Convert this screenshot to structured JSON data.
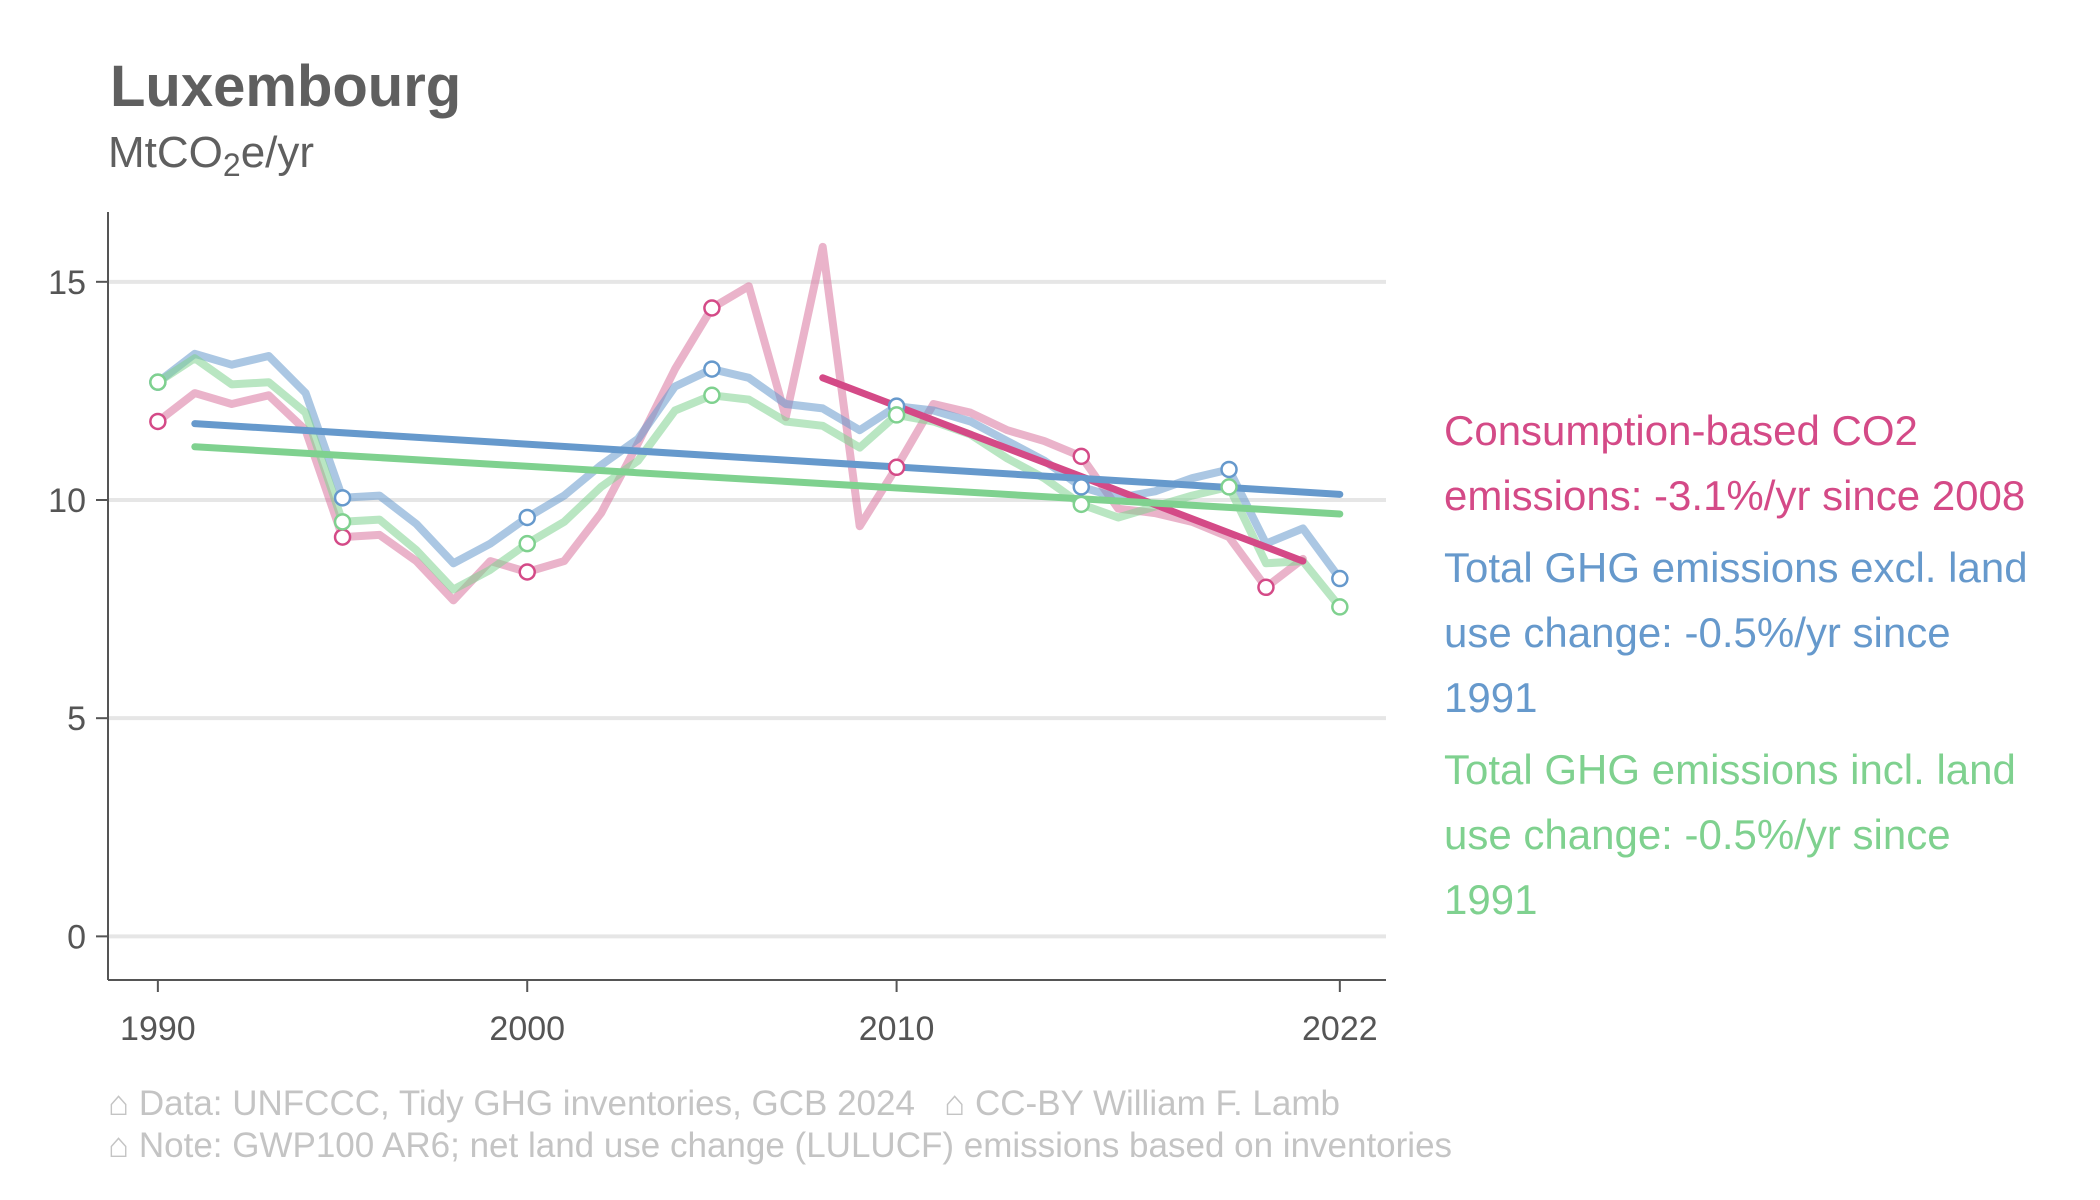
{
  "chart_data": {
    "type": "line",
    "title": "Luxembourg",
    "subtitle": {
      "prefix": "MtCO",
      "sub": "2",
      "suffix": "e/yr"
    },
    "ylim": [
      -1,
      16.6
    ],
    "xlim": [
      1988.65,
      2023.25
    ],
    "xticks": [
      "1990",
      "2000",
      "2010",
      "2022"
    ],
    "yticks": [
      "0",
      "5",
      "10",
      "15"
    ],
    "grid": true,
    "series": [
      {
        "key": "excl",
        "color": "#6699cc",
        "x": [
          1990,
          1991,
          1992,
          1993,
          1994,
          1995,
          1996,
          1997,
          1998,
          1999,
          2000,
          2001,
          2002,
          2003,
          2004,
          2005,
          2006,
          2007,
          2008,
          2009,
          2010,
          2011,
          2012,
          2013,
          2014,
          2015,
          2016,
          2017,
          2018,
          2019,
          2020,
          2021,
          2022
        ],
        "values": [
          12.7,
          13.35,
          13.1,
          13.3,
          12.45,
          10.05,
          10.1,
          9.45,
          8.55,
          9.0,
          9.6,
          10.1,
          10.8,
          11.4,
          12.6,
          13.0,
          12.8,
          12.2,
          12.1,
          11.6,
          12.15,
          12.05,
          11.8,
          11.35,
          10.9,
          10.3,
          10.05,
          10.2,
          10.5,
          10.7,
          9.0,
          9.35,
          8.2
        ],
        "markers": [
          1990,
          1995,
          2000,
          2005,
          2010,
          2015,
          2019,
          2022
        ]
      },
      {
        "key": "incl",
        "color": "#7fd18f",
        "x": [
          1990,
          1991,
          1992,
          1993,
          1994,
          1995,
          1996,
          1997,
          1998,
          1999,
          2000,
          2001,
          2002,
          2003,
          2004,
          2005,
          2006,
          2007,
          2008,
          2009,
          2010,
          2011,
          2012,
          2013,
          2014,
          2015,
          2016,
          2017,
          2018,
          2019,
          2020,
          2021,
          2022
        ],
        "values": [
          12.7,
          13.25,
          12.65,
          12.7,
          12.0,
          9.5,
          9.55,
          8.85,
          7.95,
          8.4,
          9.0,
          9.5,
          10.3,
          10.9,
          12.05,
          12.4,
          12.3,
          11.8,
          11.7,
          11.2,
          11.95,
          11.8,
          11.5,
          10.95,
          10.5,
          9.9,
          9.6,
          9.85,
          10.1,
          10.3,
          8.55,
          8.6,
          7.55
        ],
        "markers": [
          1990,
          1995,
          2000,
          2005,
          2010,
          2015,
          2019,
          2022
        ]
      },
      {
        "key": "cons",
        "color": "#d9749f",
        "x": [
          1990,
          1991,
          1992,
          1993,
          1994,
          1995,
          1996,
          1997,
          1998,
          1999,
          2000,
          2001,
          2002,
          2003,
          2004,
          2005,
          2006,
          2007,
          2008,
          2009,
          2010,
          2011,
          2012,
          2013,
          2014,
          2015,
          2016,
          2017,
          2018,
          2019,
          2020,
          2021
        ],
        "values": [
          11.8,
          12.45,
          12.2,
          12.4,
          11.6,
          9.15,
          9.2,
          8.6,
          7.7,
          8.6,
          8.35,
          8.6,
          9.7,
          11.3,
          13.0,
          14.4,
          14.9,
          11.9,
          15.8,
          9.4,
          10.75,
          12.2,
          12.0,
          11.6,
          11.35,
          11.0,
          9.8,
          9.7,
          9.5,
          9.15,
          8.0,
          8.65
        ],
        "markers": [
          1990,
          1995,
          2000,
          2005,
          2010,
          2015,
          2020
        ]
      }
    ],
    "trends": [
      {
        "key": "cons",
        "color": "#d44a87",
        "x": [
          2008,
          2021
        ],
        "values": [
          12.8,
          8.6
        ]
      },
      {
        "key": "excl",
        "color": "#6699cc",
        "x": [
          1991,
          2022
        ],
        "values": [
          11.75,
          10.13
        ]
      },
      {
        "key": "incl",
        "color": "#7fd18f",
        "x": [
          1991,
          2022
        ],
        "values": [
          11.22,
          9.68
        ]
      }
    ]
  },
  "legend": [
    {
      "key": "cons",
      "color": "#d44a87",
      "lines": [
        "Consumption-based CO2",
        "emissions: -3.1%/yr since 2008"
      ]
    },
    {
      "key": "excl",
      "color": "#6699cc",
      "lines": [
        "Total GHG emissions excl. land",
        "use change: -0.5%/yr since",
        "1991"
      ]
    },
    {
      "key": "incl",
      "color": "#7fd18f",
      "lines": [
        "Total GHG emissions incl. land",
        "use change: -0.5%/yr since",
        "1991"
      ]
    }
  ],
  "caption": {
    "line1": "⌂ Data: UNFCCC, Tidy GHG inventories, GCB 2024   ⌂ CC-BY William F. Lamb",
    "line2": "⌂ Note: GWP100 AR6; net land use change (LULUCF) emissions based on inventories"
  }
}
